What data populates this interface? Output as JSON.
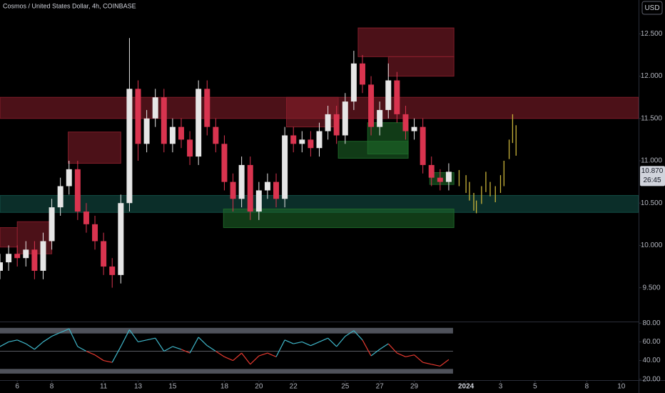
{
  "header": {
    "title": "Cosmos / United States Dollar, 4h, COINBASE",
    "currency": "USD"
  },
  "chart_data": [
    {
      "type": "candlestick",
      "x": [
        5.0,
        5.5,
        6.0,
        6.5,
        7.0,
        7.5,
        8.0,
        8.5,
        9.0,
        9.5,
        10.0,
        10.5,
        11.0,
        11.5,
        12.0,
        12.5,
        13.0,
        13.5,
        14.0,
        14.5,
        15.0,
        15.5,
        16.0,
        16.5,
        17.0,
        17.5,
        18.0,
        18.5,
        19.0,
        19.5,
        20.0,
        20.5,
        21.0,
        21.5,
        22.0,
        22.5,
        23.0,
        23.5,
        24.0,
        24.5,
        25.0,
        25.5,
        26.0,
        26.5,
        27.0,
        27.5,
        28.0,
        28.5,
        29.0,
        29.5,
        30.0,
        30.5,
        31.0
      ],
      "open": [
        9.7,
        9.8,
        9.9,
        9.85,
        9.95,
        9.7,
        10.05,
        10.45,
        10.7,
        10.9,
        10.4,
        10.25,
        10.05,
        9.75,
        9.65,
        10.5,
        11.85,
        11.2,
        11.5,
        11.75,
        11.2,
        11.4,
        11.25,
        11.05,
        11.85,
        11.4,
        11.2,
        10.75,
        10.55,
        10.95,
        10.4,
        10.65,
        10.75,
        10.55,
        11.3,
        11.2,
        11.25,
        11.15,
        11.35,
        11.55,
        11.3,
        11.7,
        12.15,
        11.9,
        11.4,
        11.6,
        11.95,
        11.55,
        11.35,
        11.4,
        10.95,
        10.8,
        10.75
      ],
      "high": [
        9.9,
        10.0,
        10.0,
        10.05,
        10.05,
        10.15,
        10.55,
        10.8,
        11.0,
        11.0,
        10.5,
        10.35,
        10.15,
        9.85,
        10.6,
        12.45,
        11.95,
        11.6,
        11.85,
        11.85,
        11.5,
        11.5,
        11.35,
        11.95,
        11.95,
        11.5,
        11.3,
        10.85,
        11.05,
        11.05,
        10.75,
        10.85,
        10.85,
        11.4,
        11.4,
        11.35,
        11.35,
        11.45,
        11.65,
        11.65,
        11.8,
        12.3,
        12.25,
        12.0,
        11.7,
        12.15,
        12.05,
        11.65,
        11.5,
        11.5,
        11.05,
        10.9,
        10.97
      ],
      "low": [
        9.6,
        9.7,
        9.75,
        9.75,
        9.6,
        9.6,
        9.95,
        10.35,
        10.6,
        10.3,
        10.15,
        9.95,
        9.65,
        9.5,
        9.55,
        10.4,
        11.0,
        11.1,
        11.4,
        11.1,
        11.1,
        11.15,
        10.95,
        10.95,
        11.3,
        11.1,
        10.65,
        10.4,
        10.45,
        10.3,
        10.3,
        10.55,
        10.45,
        10.45,
        11.1,
        11.1,
        11.05,
        11.05,
        11.25,
        11.2,
        11.2,
        11.6,
        11.8,
        11.3,
        11.3,
        11.5,
        11.45,
        11.25,
        11.25,
        10.85,
        10.7,
        10.65,
        10.65
      ],
      "close": [
        9.8,
        9.9,
        9.85,
        9.95,
        9.7,
        10.05,
        10.45,
        10.7,
        10.9,
        10.4,
        10.25,
        10.05,
        9.75,
        9.65,
        10.5,
        11.85,
        11.2,
        11.5,
        11.75,
        11.2,
        11.4,
        11.25,
        11.05,
        11.85,
        11.4,
        11.2,
        10.75,
        10.55,
        10.95,
        10.4,
        10.65,
        10.75,
        10.55,
        11.3,
        11.2,
        11.25,
        11.15,
        11.35,
        11.55,
        11.3,
        11.7,
        12.15,
        11.9,
        11.4,
        11.6,
        11.95,
        11.55,
        11.35,
        11.4,
        10.95,
        10.8,
        10.75,
        10.87
      ],
      "up_color": "#e6e6e6",
      "down_color": "#d9344f",
      "xlim": [
        5,
        42
      ],
      "ylim": [
        9.1,
        12.9
      ],
      "yticks": [
        {
          "value": 9.5,
          "label": "9.500"
        },
        {
          "value": 10,
          "label": "10.000"
        },
        {
          "value": 10.5,
          "label": "10.500"
        },
        {
          "value": 11,
          "label": "11.000"
        },
        {
          "value": 11.5,
          "label": "11.500"
        },
        {
          "value": 12,
          "label": "12.000"
        },
        {
          "value": 12.5,
          "label": "12.500"
        }
      ],
      "xticks": [
        6,
        8,
        11,
        13,
        15,
        18,
        20,
        22,
        25,
        27,
        29,
        {
          "value": 32,
          "label": "2024"
        },
        {
          "value": 34,
          "label": "3"
        },
        {
          "value": 36,
          "label": "5"
        },
        {
          "value": 39,
          "label": "8"
        },
        {
          "value": 41,
          "label": "10"
        }
      ],
      "zones": [
        {
          "x0": 5,
          "x1": 42,
          "y0": 11.5,
          "y1": 11.75,
          "color": "#8b1f2c"
        },
        {
          "x0": 5,
          "x1": 6,
          "y0": 9.98,
          "y1": 10.21,
          "color": "#8b1f2c"
        },
        {
          "x0": 6,
          "x1": 8,
          "y0": 9.9,
          "y1": 10.28,
          "color": "#8b1f2c"
        },
        {
          "x0": 8.95,
          "x1": 12,
          "y0": 10.97,
          "y1": 11.34,
          "color": "#8b1f2c"
        },
        {
          "x0": 21.6,
          "x1": 24.6,
          "y0": 11.4,
          "y1": 11.75,
          "color": "#8b1f2c"
        },
        {
          "x0": 25.75,
          "x1": 31.3,
          "y0": 12.23,
          "y1": 12.57,
          "color": "#8b1f2c"
        },
        {
          "x0": 27.5,
          "x1": 31.3,
          "y0": 12.0,
          "y1": 12.23,
          "color": "#8b1f2c"
        },
        {
          "x0": 5,
          "x1": 42,
          "y0": 10.39,
          "y1": 10.59,
          "color": "#14534a"
        },
        {
          "x0": 17.95,
          "x1": 31.3,
          "y0": 10.21,
          "y1": 10.43,
          "color": "#1f6b2a"
        },
        {
          "x0": 24.6,
          "x1": 28.65,
          "y0": 11.03,
          "y1": 11.23,
          "color": "#1f6b2a"
        },
        {
          "x0": 26.3,
          "x1": 28.65,
          "y0": 11.08,
          "y1": 11.45,
          "color": "#1f6b2a"
        },
        {
          "x0": 29.9,
          "x1": 31.3,
          "y0": 10.72,
          "y1": 10.86,
          "color": "#1f6b2a"
        }
      ],
      "projection": {
        "color": "#c9b43a",
        "x": [
          31.6,
          32.0,
          32.2,
          32.45,
          32.6,
          32.9,
          33.15,
          33.4,
          33.7,
          34.0,
          34.2,
          34.5,
          34.7,
          34.9
        ],
        "low": [
          10.7,
          10.62,
          10.53,
          10.41,
          10.38,
          10.49,
          10.63,
          10.58,
          10.51,
          10.62,
          10.7,
          11.02,
          11.21,
          11.06
        ],
        "high": [
          10.89,
          10.83,
          10.75,
          10.62,
          10.53,
          10.7,
          10.87,
          10.75,
          10.7,
          10.83,
          11.0,
          11.25,
          11.55,
          11.42
        ]
      },
      "last_price": {
        "value": 10.87,
        "label": "10.870"
      },
      "countdown": "26:45"
    },
    {
      "type": "line",
      "x": [
        5.0,
        5.5,
        6.0,
        6.5,
        7.0,
        7.5,
        8.0,
        8.5,
        9.0,
        9.5,
        10.0,
        10.5,
        11.0,
        11.5,
        12.0,
        12.5,
        13.0,
        13.5,
        14.0,
        14.5,
        15.0,
        15.5,
        16.0,
        16.5,
        17.0,
        17.5,
        18.0,
        18.5,
        19.0,
        19.5,
        20.0,
        20.5,
        21.0,
        21.5,
        22.0,
        22.5,
        23.0,
        23.5,
        24.0,
        24.5,
        25.0,
        25.5,
        26.0,
        26.5,
        27.0,
        27.5,
        28.0,
        28.5,
        29.0,
        29.5,
        30.0,
        30.5,
        31.0
      ],
      "values": [
        55,
        60,
        62,
        58,
        52,
        60,
        66,
        70,
        74,
        55,
        50,
        46,
        40,
        38,
        55,
        73,
        60,
        62,
        64,
        50,
        55,
        52,
        48,
        65,
        56,
        50,
        44,
        40,
        48,
        36,
        45,
        48,
        44,
        62,
        58,
        60,
        56,
        60,
        64,
        55,
        66,
        72,
        62,
        45,
        52,
        58,
        48,
        44,
        46,
        38,
        36,
        34,
        41
      ],
      "up_color": "#3fb6c9",
      "down_color": "#e5392f",
      "midline": 50,
      "bands": [
        [
          69,
          75
        ],
        [
          26,
          31
        ]
      ],
      "xlim": [
        5,
        42
      ],
      "ylim": [
        19,
        81
      ],
      "yticks": [
        {
          "value": 20,
          "label": "20.00"
        },
        {
          "value": 40,
          "label": "40.00"
        },
        {
          "value": 60,
          "label": "60.00"
        },
        {
          "value": 80,
          "label": "80.00"
        }
      ]
    }
  ]
}
